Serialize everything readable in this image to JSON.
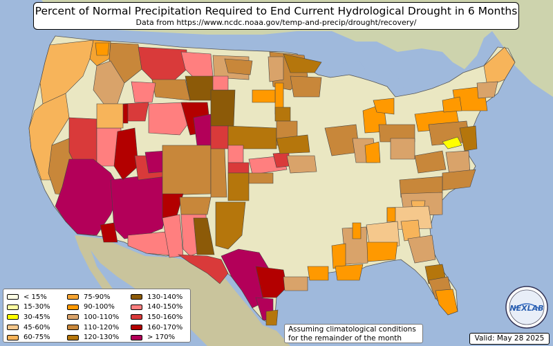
{
  "title": "Percent of Normal Precipitation Required to End Current Hydrological Drought in 6 Months",
  "subtitle": "Data from https://www.ncdc.noaa.gov/temp-and-precip/drought/recovery/",
  "note_line1": "Assuming climatological conditions",
  "note_line2": "for the remainder of the month",
  "valid": "Valid: May 28 2025",
  "logo_text": "NEXLAB",
  "legend": [
    {
      "label": "< 15%",
      "color": "#ffffe6"
    },
    {
      "label": "15-30%",
      "color": "#ffffa3"
    },
    {
      "label": "30-45%",
      "color": "#ffff00"
    },
    {
      "label": "45-60%",
      "color": "#f5c88c"
    },
    {
      "label": "60-75%",
      "color": "#f7b45a"
    },
    {
      "label": "75-90%",
      "color": "#f5a432"
    },
    {
      "label": "90-100%",
      "color": "#ff9900"
    },
    {
      "label": "100-110%",
      "color": "#d9a36a"
    },
    {
      "label": "110-120%",
      "color": "#c8873a"
    },
    {
      "label": "120-130%",
      "color": "#b5760c"
    },
    {
      "label": "130-140%",
      "color": "#8c5a08"
    },
    {
      "label": "140-150%",
      "color": "#ff7f7f"
    },
    {
      "label": "150-160%",
      "color": "#d93a3a"
    },
    {
      "label": "160-170%",
      "color": "#b30000"
    },
    {
      "label": "> 170%",
      "color": "#b30059"
    }
  ],
  "colors": {
    "ocean": "#9fb9dc",
    "land_canada": "#d3d8b6",
    "land_us": "#eae7c2",
    "land_mexico": "#c9c49c"
  }
}
